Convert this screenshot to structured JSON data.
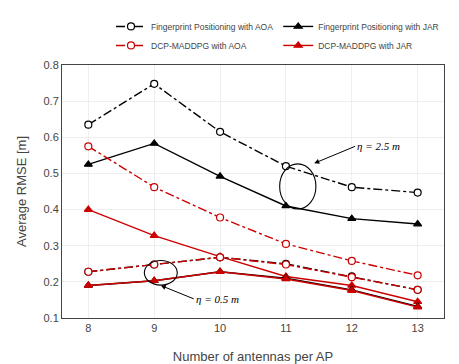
{
  "chart_data": {
    "type": "line",
    "x": [
      8,
      9,
      10,
      11,
      12,
      13
    ],
    "xlabel": "Number of antennas per AP",
    "ylabel": "Average RMSE [m]",
    "xlim": [
      7.6,
      13.4
    ],
    "xticks": [
      8,
      9,
      10,
      11,
      12,
      13
    ],
    "ylim": [
      0.1,
      0.8
    ],
    "yticks": [
      0.1,
      0.2,
      0.3,
      0.4,
      0.5,
      0.6,
      0.7,
      0.8
    ],
    "grid": true,
    "legend": "upper right",
    "series": [
      {
        "name": "Fingerprint Positioning with AOA",
        "color": "#000000",
        "marker": "circle-open",
        "line_style": "dashdot",
        "values": [
          0.635,
          0.748,
          0.615,
          0.52,
          0.462,
          0.447
        ]
      },
      {
        "name": "Fingerprint Positioning with JAR",
        "color": "#000000",
        "marker": "triangle-up",
        "line_style": "solid",
        "values": [
          0.525,
          0.583,
          0.492,
          0.41,
          0.375,
          0.36
        ]
      },
      {
        "name": "DCP-MADDPG with AOA",
        "color": "#cc0000",
        "marker": "circle-open",
        "line_style": "dashdot",
        "values": [
          0.575,
          0.462,
          0.378,
          0.305,
          0.258,
          0.218
        ]
      },
      {
        "name": "DCP-MADDPG with JAR",
        "color": "#cc0000",
        "marker": "triangle-up",
        "line_style": "solid",
        "values": [
          0.4,
          0.328,
          0.27,
          0.215,
          0.19,
          0.145
        ]
      },
      {
        "color": "#000000",
        "marker": "circle-open",
        "line_style": "dashdot",
        "values": [
          0.228,
          0.248,
          0.268,
          0.25,
          0.215,
          0.178
        ]
      },
      {
        "color": "#000000",
        "marker": "triangle-up",
        "line_style": "solid",
        "values": [
          0.19,
          0.203,
          0.228,
          0.21,
          0.178,
          0.132
        ]
      },
      {
        "color": "#cc0000",
        "marker": "circle-open",
        "line_style": "dashdot",
        "values": [
          0.228,
          0.248,
          0.268,
          0.248,
          0.213,
          0.178
        ]
      },
      {
        "color": "#cc0000",
        "marker": "triangle-up",
        "line_style": "solid",
        "values": [
          0.19,
          0.203,
          0.228,
          0.208,
          0.176,
          0.13
        ]
      }
    ],
    "annotations": [
      "η = 2.5 m",
      "η = 0.5 m"
    ]
  }
}
